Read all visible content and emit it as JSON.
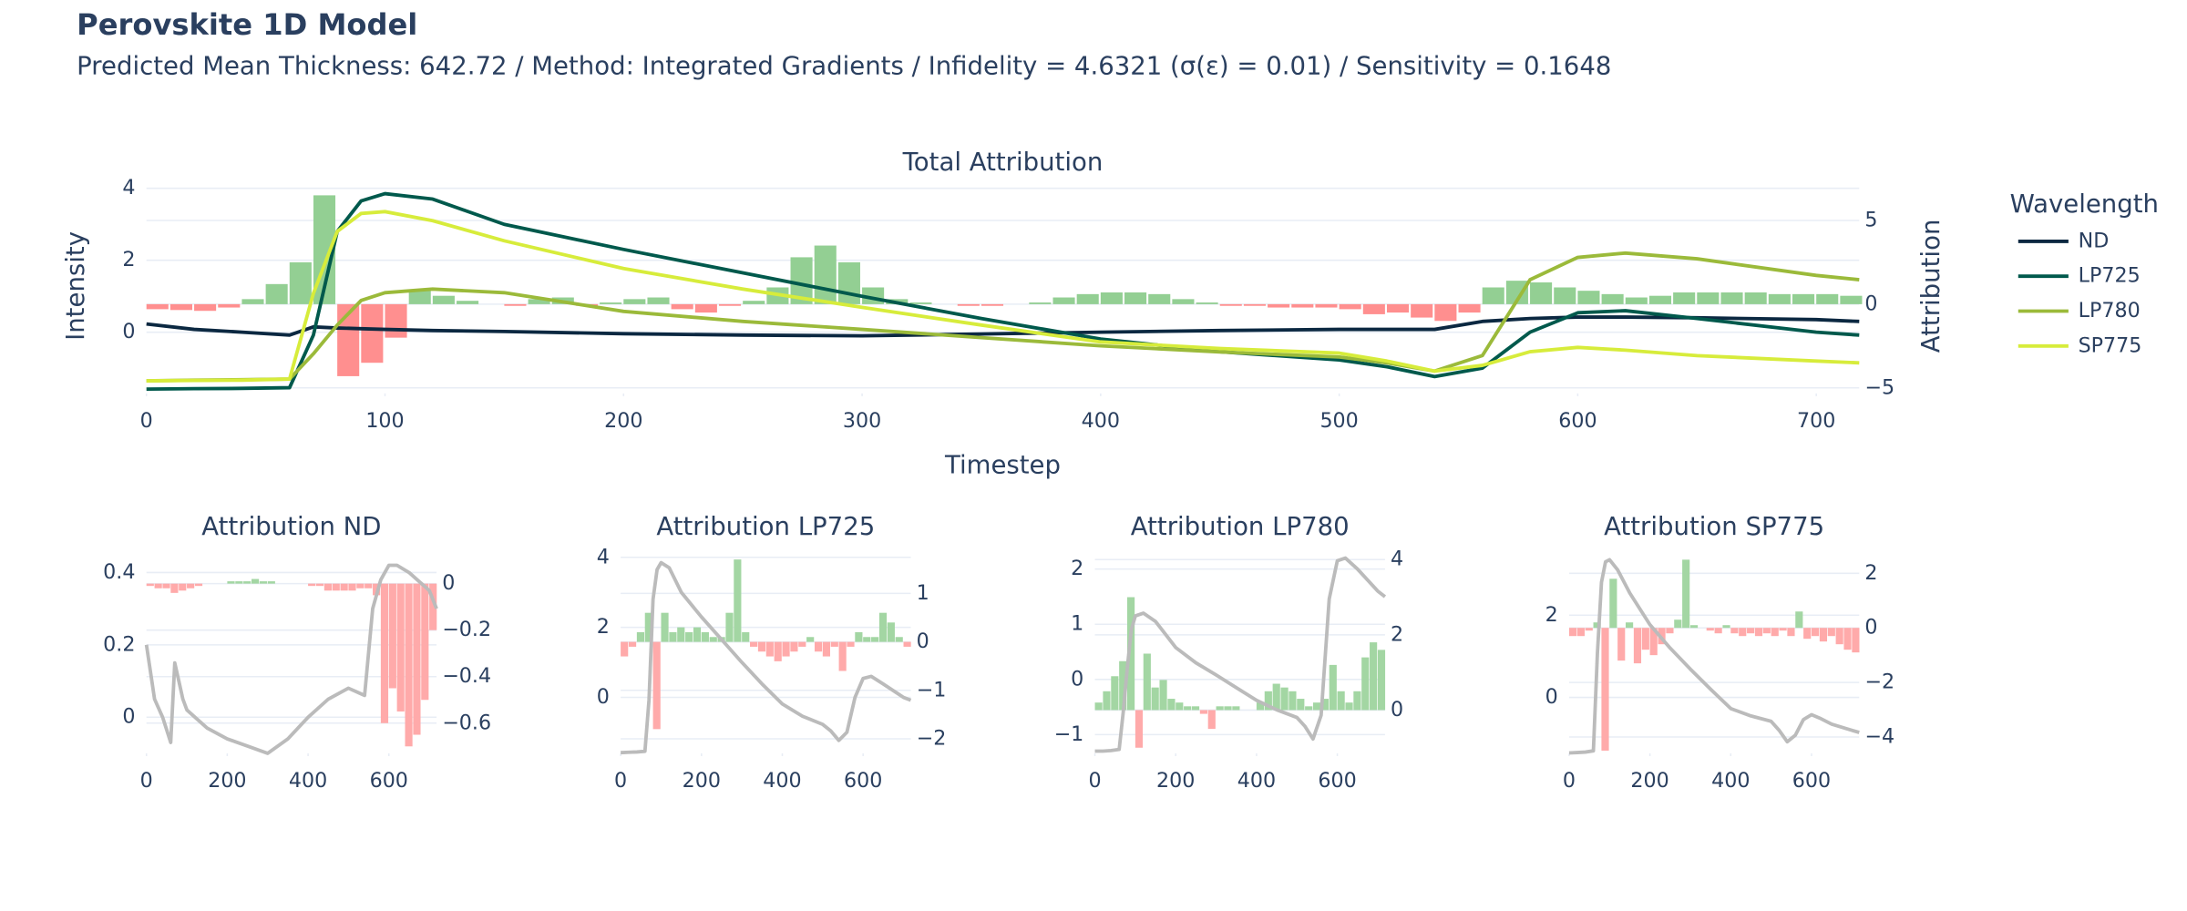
{
  "title": "Perovskite 1D Model",
  "subtitle": "Predicted Mean Thickness: 642.72 / Method: Integrated Gradients / Infidelity = 4.6321 (σ(ε) = 0.01) / Sensitivity = 0.1648",
  "chart_data": [
    {
      "type": "line",
      "title": "Total Attribution",
      "xlabel": "Timestep",
      "ylabel": "Intensity",
      "y2label": "Attribution",
      "xlim": [
        0,
        718
      ],
      "xticks": [
        0,
        100,
        200,
        300,
        400,
        500,
        600,
        700
      ],
      "ylim": [
        -1.7,
        4.27
      ],
      "yticks": [
        0,
        2,
        4
      ],
      "y2lim": [
        -5.33,
        7.5
      ],
      "y2ticks": [
        {
          "value": -5,
          "label": "−5"
        },
        0,
        5
      ],
      "grid": true,
      "legend": {
        "title": "Wavelength",
        "position": "right"
      },
      "x": [
        0,
        20,
        40,
        60,
        70,
        80,
        90,
        100,
        120,
        150,
        200,
        250,
        300,
        350,
        400,
        450,
        500,
        520,
        540,
        560,
        580,
        600,
        620,
        650,
        700,
        718
      ],
      "series": [
        {
          "name": "ND",
          "color": "#0b2841",
          "values": [
            0.23,
            0.08,
            0.0,
            -0.08,
            0.15,
            0.12,
            0.1,
            0.08,
            0.05,
            0.02,
            -0.04,
            -0.08,
            -0.1,
            -0.05,
            0,
            0.05,
            0.08,
            0.08,
            0.08,
            0.3,
            0.38,
            0.42,
            0.42,
            0.4,
            0.35,
            0.3
          ]
        },
        {
          "name": "LP725",
          "color": "#00594c",
          "values": [
            -1.58,
            -1.57,
            -1.56,
            -1.54,
            -0.08,
            2.8,
            3.65,
            3.85,
            3.7,
            3.0,
            2.3,
            1.65,
            1.0,
            0.38,
            -0.19,
            -0.54,
            -0.77,
            -0.96,
            -1.23,
            -1.0,
            0,
            0.54,
            0.6,
            0.38,
            0.0,
            -0.08
          ]
        },
        {
          "name": "LP780",
          "color": "#9bba3a",
          "values": [
            -1.35,
            -1.33,
            -1.32,
            -1.3,
            -0.6,
            0.2,
            0.88,
            1.1,
            1.2,
            1.1,
            0.58,
            0.3,
            0.08,
            -0.15,
            -0.38,
            -0.55,
            -0.69,
            -0.85,
            -1.08,
            -0.65,
            1.46,
            2.08,
            2.2,
            2.04,
            1.58,
            1.46
          ]
        },
        {
          "name": "SP775",
          "color": "#d7ec3b",
          "values": [
            -1.35,
            -1.34,
            -1.33,
            -1.3,
            1.08,
            2.8,
            3.3,
            3.35,
            3.1,
            2.54,
            1.77,
            1.2,
            0.69,
            0.2,
            -0.27,
            -0.45,
            -0.58,
            -0.8,
            -1.08,
            -0.92,
            -0.54,
            -0.42,
            -0.5,
            -0.65,
            -0.8,
            -0.85
          ]
        }
      ],
      "attribution": {
        "axis": "y2",
        "positive_color": "#93cf93",
        "negative_color": "#ff8f8f",
        "x": [
          0,
          10,
          20,
          30,
          40,
          50,
          60,
          70,
          80,
          90,
          100,
          110,
          120,
          130,
          140,
          150,
          160,
          170,
          180,
          190,
          200,
          210,
          220,
          230,
          240,
          250,
          260,
          270,
          280,
          290,
          300,
          310,
          320,
          330,
          340,
          350,
          360,
          370,
          380,
          390,
          400,
          410,
          420,
          430,
          440,
          450,
          460,
          470,
          480,
          490,
          500,
          510,
          520,
          530,
          540,
          550,
          560,
          570,
          580,
          590,
          600,
          610,
          620,
          630,
          640,
          650,
          660,
          670,
          680,
          690,
          700,
          710
        ],
        "values": [
          -0.3,
          -0.35,
          -0.4,
          -0.2,
          0.3,
          1.2,
          2.5,
          6.5,
          -4.3,
          -3.5,
          -2.0,
          0.8,
          0.5,
          0.2,
          0.0,
          -0.1,
          0.3,
          0.4,
          -0.1,
          0.1,
          0.3,
          0.4,
          -0.3,
          -0.5,
          -0.1,
          0.2,
          1.0,
          2.8,
          3.5,
          2.5,
          1.0,
          0.3,
          0.1,
          0.0,
          -0.1,
          -0.1,
          0.0,
          0.1,
          0.4,
          0.6,
          0.7,
          0.7,
          0.6,
          0.3,
          0.1,
          -0.1,
          -0.1,
          -0.2,
          -0.2,
          -0.2,
          -0.3,
          -0.6,
          -0.5,
          -0.8,
          -1.0,
          -0.5,
          1.0,
          1.4,
          1.3,
          1.0,
          0.8,
          0.6,
          0.4,
          0.5,
          0.7,
          0.7,
          0.7,
          0.7,
          0.6,
          0.6,
          0.6,
          0.5
        ]
      }
    },
    {
      "type": "line",
      "title": "Attribution ND",
      "xlim": [
        0,
        718
      ],
      "xticks": [
        0,
        200,
        400,
        600
      ],
      "ylim": [
        -0.1,
        0.44
      ],
      "yticks": [
        0,
        0.2,
        0.4
      ],
      "y2lim": [
        -0.73,
        0.11
      ],
      "y2ticks": [
        {
          "value": -0.6,
          "label": "−0.6"
        },
        {
          "value": -0.4,
          "label": "−0.4"
        },
        {
          "value": -0.2,
          "label": "−0.2"
        },
        0
      ],
      "grid": true,
      "x": [
        0,
        20,
        40,
        60,
        70,
        80,
        90,
        100,
        120,
        150,
        200,
        250,
        300,
        350,
        400,
        450,
        500,
        520,
        540,
        560,
        580,
        600,
        620,
        650,
        700,
        718
      ],
      "series": [
        {
          "color": "#bbbbbb",
          "values": [
            0.2,
            0.05,
            0.0,
            -0.07,
            0.15,
            0.1,
            0.05,
            0.02,
            0.0,
            -0.03,
            -0.06,
            -0.08,
            -0.1,
            -0.06,
            0.0,
            0.05,
            0.08,
            0.07,
            0.06,
            0.3,
            0.38,
            0.42,
            0.42,
            0.4,
            0.35,
            0.3
          ]
        }
      ],
      "attribution": {
        "axis": "y2",
        "positive_color": "#a3d6a3",
        "negative_color": "#ffaaaa",
        "x": [
          0,
          20,
          40,
          60,
          80,
          100,
          120,
          140,
          160,
          180,
          200,
          220,
          240,
          260,
          280,
          300,
          320,
          340,
          360,
          380,
          400,
          420,
          440,
          460,
          480,
          500,
          520,
          540,
          560,
          580,
          600,
          620,
          640,
          660,
          680,
          700
        ],
        "values": [
          -0.01,
          -0.02,
          -0.02,
          -0.04,
          -0.03,
          -0.02,
          -0.01,
          0,
          0,
          0,
          0.01,
          0.01,
          0.01,
          0.02,
          0.01,
          0.01,
          0,
          0,
          0,
          0,
          -0.01,
          -0.01,
          -0.03,
          -0.03,
          -0.03,
          -0.03,
          -0.02,
          -0.02,
          -0.05,
          -0.6,
          -0.45,
          -0.55,
          -0.7,
          -0.65,
          -0.5,
          -0.2
        ]
      }
    },
    {
      "type": "line",
      "title": "Attribution LP725",
      "xlim": [
        0,
        718
      ],
      "xticks": [
        0,
        200,
        400,
        600
      ],
      "ylim": [
        -1.6,
        3.98
      ],
      "yticks": [
        0,
        2,
        4
      ],
      "y2lim": [
        -2.3,
        1.73
      ],
      "y2ticks": [
        {
          "value": -2,
          "label": "−2"
        },
        {
          "value": -1,
          "label": "−1"
        },
        0,
        1
      ],
      "grid": true,
      "x": [
        0,
        20,
        40,
        60,
        70,
        80,
        90,
        100,
        120,
        150,
        200,
        250,
        300,
        350,
        400,
        450,
        500,
        520,
        540,
        560,
        580,
        600,
        620,
        650,
        700,
        718
      ],
      "series": [
        {
          "color": "#bbbbbb",
          "values": [
            -1.58,
            -1.57,
            -1.56,
            -1.54,
            -0.08,
            2.8,
            3.65,
            3.85,
            3.7,
            3.0,
            2.3,
            1.65,
            1.0,
            0.38,
            -0.19,
            -0.54,
            -0.77,
            -0.96,
            -1.23,
            -1.0,
            0,
            0.54,
            0.6,
            0.38,
            0.0,
            -0.08
          ]
        }
      ],
      "attribution": {
        "axis": "y2",
        "positive_color": "#a3d6a3",
        "negative_color": "#ffaaaa",
        "x": [
          0,
          20,
          40,
          60,
          80,
          100,
          120,
          140,
          160,
          180,
          200,
          220,
          240,
          260,
          280,
          300,
          320,
          340,
          360,
          380,
          400,
          420,
          440,
          460,
          480,
          500,
          520,
          540,
          560,
          580,
          600,
          620,
          640,
          660,
          680,
          700
        ],
        "values": [
          -0.3,
          -0.1,
          0.2,
          0.6,
          -1.8,
          0.6,
          0.2,
          0.3,
          0.2,
          0.3,
          0.2,
          0.1,
          0.1,
          0.6,
          1.7,
          0.2,
          -0.1,
          -0.2,
          -0.3,
          -0.4,
          -0.3,
          -0.2,
          -0.1,
          0.1,
          -0.2,
          -0.3,
          -0.1,
          -0.6,
          -0.1,
          0.2,
          0.1,
          0.1,
          0.6,
          0.4,
          0.1,
          -0.1
        ]
      }
    },
    {
      "type": "line",
      "title": "Attribution LP780",
      "xlim": [
        0,
        718
      ],
      "xticks": [
        0,
        200,
        400,
        600
      ],
      "ylim": [
        -1.34,
        2.2
      ],
      "yticks": [
        {
          "value": -1,
          "label": "−1"
        },
        0,
        1,
        2
      ],
      "y2lim": [
        -1.15,
        4.04
      ],
      "y2ticks": [
        0,
        2,
        4
      ],
      "grid": true,
      "x": [
        0,
        20,
        40,
        60,
        70,
        80,
        90,
        100,
        120,
        150,
        200,
        250,
        300,
        350,
        400,
        450,
        500,
        520,
        540,
        560,
        580,
        600,
        620,
        650,
        700,
        718
      ],
      "series": [
        {
          "color": "#bbbbbb",
          "values": [
            -1.3,
            -1.3,
            -1.29,
            -1.27,
            -0.6,
            0.2,
            0.9,
            1.15,
            1.2,
            1.05,
            0.58,
            0.3,
            0.08,
            -0.15,
            -0.38,
            -0.55,
            -0.69,
            -0.85,
            -1.08,
            -0.65,
            1.46,
            2.15,
            2.2,
            2.0,
            1.6,
            1.5
          ]
        }
      ],
      "attribution": {
        "axis": "y2",
        "positive_color": "#a3d6a3",
        "negative_color": "#ffaaaa",
        "x": [
          0,
          20,
          40,
          60,
          80,
          100,
          120,
          140,
          160,
          180,
          200,
          220,
          240,
          260,
          280,
          300,
          320,
          340,
          360,
          380,
          400,
          420,
          440,
          460,
          480,
          500,
          520,
          540,
          560,
          580,
          600,
          620,
          640,
          660,
          680,
          700
        ],
        "values": [
          0.2,
          0.5,
          0.9,
          1.3,
          3.0,
          -1.0,
          1.5,
          0.6,
          0.8,
          0.3,
          0.2,
          0.1,
          0.1,
          -0.1,
          -0.5,
          0.1,
          0.1,
          0.1,
          0.0,
          0.0,
          0.2,
          0.5,
          0.7,
          0.6,
          0.5,
          0.3,
          0.1,
          0.2,
          0.3,
          1.2,
          0.5,
          0.2,
          0.5,
          1.4,
          1.8,
          1.6
        ]
      }
    },
    {
      "type": "line",
      "title": "Attribution SP775",
      "xlim": [
        0,
        718
      ],
      "xticks": [
        0,
        200,
        400,
        600
      ],
      "ylim": [
        -1.36,
        3.39
      ],
      "yticks": [
        0,
        2
      ],
      "y2lim": [
        -4.6,
        2.56
      ],
      "y2ticks": [
        {
          "value": -4,
          "label": "−4"
        },
        {
          "value": -2,
          "label": "−2"
        },
        0,
        2
      ],
      "grid": true,
      "x": [
        0,
        20,
        40,
        60,
        70,
        80,
        90,
        100,
        120,
        150,
        200,
        250,
        300,
        350,
        400,
        450,
        500,
        520,
        540,
        560,
        580,
        600,
        620,
        650,
        700,
        718
      ],
      "series": [
        {
          "color": "#bbbbbb",
          "values": [
            -1.35,
            -1.34,
            -1.33,
            -1.3,
            1.08,
            2.8,
            3.3,
            3.35,
            3.1,
            2.54,
            1.77,
            1.2,
            0.69,
            0.2,
            -0.27,
            -0.45,
            -0.58,
            -0.8,
            -1.08,
            -0.92,
            -0.54,
            -0.42,
            -0.5,
            -0.65,
            -0.8,
            -0.85
          ]
        }
      ],
      "attribution": {
        "axis": "y2",
        "positive_color": "#a3d6a3",
        "negative_color": "#ffaaaa",
        "x": [
          0,
          20,
          40,
          60,
          80,
          100,
          120,
          140,
          160,
          180,
          200,
          220,
          240,
          260,
          280,
          300,
          320,
          340,
          360,
          380,
          400,
          420,
          440,
          460,
          480,
          500,
          520,
          540,
          560,
          580,
          600,
          620,
          640,
          660,
          680,
          700
        ],
        "values": [
          -0.3,
          -0.3,
          -0.1,
          0.2,
          -4.5,
          1.8,
          -1.2,
          0.2,
          -1.3,
          -0.8,
          -1.0,
          -0.6,
          -0.2,
          0.3,
          2.5,
          0.1,
          0,
          -0.1,
          -0.2,
          0.1,
          -0.2,
          -0.3,
          -0.2,
          -0.3,
          -0.2,
          -0.3,
          -0.1,
          -0.3,
          0.6,
          -0.4,
          -0.3,
          -0.5,
          -0.3,
          -0.6,
          -0.8,
          -0.9
        ]
      }
    }
  ]
}
